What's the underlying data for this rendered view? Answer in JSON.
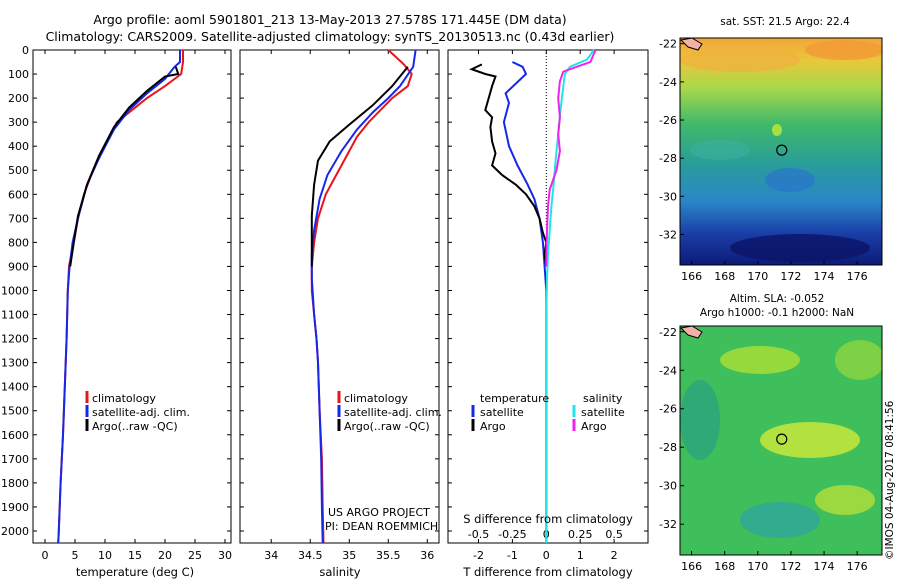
{
  "header": {
    "line1": "Argo profile: aoml 5901801_213 13-May-2013 27.578S 171.445E (DM data)",
    "line2": "Climatology: CARS2009. Satellite-adjusted climatology: synTS_20130513.nc (0.43d earlier)"
  },
  "colors": {
    "climatology": "#e8141a",
    "satellite": "#1528e8",
    "argo": "#000000",
    "sal_satellite": "#22e4e8",
    "sal_argo": "#ee22ee"
  },
  "depth_axis": {
    "ylim": [
      0,
      2050
    ],
    "ticks": [
      0,
      100,
      200,
      300,
      400,
      500,
      600,
      700,
      800,
      900,
      1000,
      1100,
      1200,
      1300,
      1400,
      1500,
      1600,
      1700,
      1800,
      1900,
      2000
    ]
  },
  "chart_data": [
    {
      "id": "temperature",
      "type": "line",
      "xlabel": "temperature (deg C)",
      "xlim": [
        -2,
        31
      ],
      "xticks": [
        0,
        5,
        10,
        15,
        20,
        25,
        30
      ],
      "legend": [
        "climatology",
        "satellite-adj. clim.",
        "Argo(..raw -QC)"
      ],
      "series": [
        {
          "name": "climatology",
          "color": "#e8141a",
          "points": [
            [
              23,
              0
            ],
            [
              23,
              50
            ],
            [
              22.7,
              100
            ],
            [
              20,
              150
            ],
            [
              17,
              200
            ],
            [
              14.5,
              250
            ],
            [
              12,
              300
            ],
            [
              10,
              400
            ],
            [
              8,
              500
            ],
            [
              6.5,
              600
            ],
            [
              5.5,
              700
            ],
            [
              4.8,
              800
            ],
            [
              4,
              900
            ],
            [
              3.8,
              1000
            ],
            [
              3.6,
              1200
            ],
            [
              3.3,
              1400
            ],
            [
              3,
              1600
            ],
            [
              2.6,
              1800
            ],
            [
              2.3,
              2000
            ],
            [
              2.2,
              2050
            ]
          ]
        },
        {
          "name": "satellite-adj. clim.",
          "color": "#1528e8",
          "points": [
            [
              22.5,
              0
            ],
            [
              22.5,
              50
            ],
            [
              21.6,
              70
            ],
            [
              20,
              120
            ],
            [
              17,
              180
            ],
            [
              14,
              250
            ],
            [
              11.5,
              330
            ],
            [
              9,
              450
            ],
            [
              7,
              560
            ],
            [
              5.5,
              700
            ],
            [
              4.6,
              800
            ],
            [
              4.1,
              900
            ],
            [
              3.8,
              1000
            ],
            [
              3.6,
              1200
            ],
            [
              3.3,
              1400
            ],
            [
              3,
              1600
            ],
            [
              2.6,
              1800
            ],
            [
              2.3,
              2000
            ],
            [
              2.2,
              2050
            ]
          ]
        },
        {
          "name": "Argo(..raw -QC)",
          "color": "#000000",
          "points": [
            [
              21.8,
              70
            ],
            [
              22.2,
              100
            ],
            [
              20,
              110
            ],
            [
              17,
              170
            ],
            [
              14,
              240
            ],
            [
              11.5,
              320
            ],
            [
              9,
              440
            ],
            [
              7,
              560
            ],
            [
              5.5,
              690
            ],
            [
              4.8,
              800
            ],
            [
              4.2,
              900
            ]
          ]
        }
      ]
    },
    {
      "id": "salinity",
      "type": "line",
      "xlabel": "salinity",
      "xlim": [
        33.6,
        36.15
      ],
      "xticks": [
        34,
        34.5,
        35,
        35.5,
        36
      ],
      "xticklabels": [
        "34",
        "34.5",
        "35",
        "35.5",
        "36"
      ],
      "legend": [
        "climatology",
        "satellite-adj. clim.",
        "Argo(..raw -QC)"
      ],
      "series": [
        {
          "name": "climatology",
          "color": "#e8141a",
          "points": [
            [
              35.5,
              0
            ],
            [
              35.7,
              60
            ],
            [
              35.8,
              100
            ],
            [
              35.75,
              150
            ],
            [
              35.55,
              200
            ],
            [
              35.4,
              250
            ],
            [
              35.25,
              300
            ],
            [
              35.1,
              360
            ],
            [
              35,
              420
            ],
            [
              34.9,
              480
            ],
            [
              34.8,
              540
            ],
            [
              34.7,
              600
            ],
            [
              34.6,
              700
            ],
            [
              34.55,
              800
            ],
            [
              34.52,
              900
            ],
            [
              34.52,
              1000
            ],
            [
              34.55,
              1100
            ],
            [
              34.58,
              1200
            ],
            [
              34.6,
              1300
            ],
            [
              34.62,
              1500
            ],
            [
              34.65,
              1700
            ],
            [
              34.66,
              1900
            ],
            [
              34.67,
              2050
            ]
          ]
        },
        {
          "name": "satellite-adj. clim.",
          "color": "#1528e8",
          "points": [
            [
              35.85,
              0
            ],
            [
              35.82,
              70
            ],
            [
              35.65,
              150
            ],
            [
              35.5,
              200
            ],
            [
              35.3,
              260
            ],
            [
              35.1,
              330
            ],
            [
              34.9,
              420
            ],
            [
              34.72,
              520
            ],
            [
              34.62,
              620
            ],
            [
              34.55,
              750
            ],
            [
              34.52,
              850
            ],
            [
              34.52,
              950
            ],
            [
              34.55,
              1100
            ],
            [
              34.58,
              1200
            ],
            [
              34.6,
              1300
            ],
            [
              34.62,
              1500
            ],
            [
              34.64,
              1700
            ],
            [
              34.65,
              1900
            ],
            [
              34.66,
              2050
            ]
          ]
        },
        {
          "name": "Argo(..raw -QC)",
          "color": "#000000",
          "points": [
            [
              35.75,
              70
            ],
            [
              35.7,
              90
            ],
            [
              35.55,
              150
            ],
            [
              35.3,
              230
            ],
            [
              35,
              310
            ],
            [
              34.75,
              380
            ],
            [
              34.6,
              460
            ],
            [
              34.55,
              560
            ],
            [
              34.52,
              690
            ],
            [
              34.52,
              800
            ],
            [
              34.52,
              900
            ]
          ]
        }
      ]
    },
    {
      "id": "differences",
      "type": "line",
      "xlabel": "T difference from climatology",
      "xlabel_top": "S difference from climatology",
      "xlim": [
        -2.9,
        3.0
      ],
      "xticks": [
        -2,
        -1,
        0,
        1,
        2
      ],
      "sticks": [
        -0.5,
        -0.25,
        0,
        0.25,
        0.5
      ],
      "sticklabels": [
        "-0.5",
        "-0.25",
        "0",
        "0.25",
        "0.5"
      ],
      "legend_temperature_title": "temperature",
      "legend_salinity_title": "salinity",
      "legend_items": [
        "satellite",
        "Argo",
        "satellite",
        "Argo"
      ],
      "series": [
        {
          "name": "satellite",
          "group": "temperature",
          "color": "#1528e8",
          "points": [
            [
              -1,
              50
            ],
            [
              -0.7,
              70
            ],
            [
              -0.6,
              100
            ],
            [
              -1.2,
              180
            ],
            [
              -1.1,
              220
            ],
            [
              -1.25,
              300
            ],
            [
              -1.1,
              400
            ],
            [
              -0.85,
              480
            ],
            [
              -0.55,
              560
            ],
            [
              -0.35,
              620
            ],
            [
              -0.2,
              700
            ],
            [
              -0.1,
              800
            ],
            [
              -0.05,
              900
            ],
            [
              0,
              1000
            ],
            [
              0,
              1200
            ],
            [
              0,
              1400
            ],
            [
              0,
              1600
            ],
            [
              0,
              1800
            ],
            [
              0,
              2050
            ]
          ]
        },
        {
          "name": "Argo",
          "group": "temperature",
          "color": "#000000",
          "points": [
            [
              -1.9,
              60
            ],
            [
              -2.2,
              80
            ],
            [
              -1.8,
              100
            ],
            [
              -1.5,
              110
            ],
            [
              -1.6,
              150
            ],
            [
              -1.7,
              200
            ],
            [
              -1.8,
              250
            ],
            [
              -1.6,
              280
            ],
            [
              -1.65,
              320
            ],
            [
              -1.6,
              380
            ],
            [
              -1.5,
              430
            ],
            [
              -1.6,
              480
            ],
            [
              -1.3,
              520
            ],
            [
              -0.9,
              560
            ],
            [
              -0.6,
              600
            ],
            [
              -0.35,
              650
            ],
            [
              -0.2,
              700
            ],
            [
              -0.1,
              760
            ],
            [
              0,
              800
            ],
            [
              -0.05,
              850
            ],
            [
              0,
              900
            ]
          ]
        },
        {
          "name": "satellite",
          "group": "salinity",
          "color": "#22e4e8",
          "points": [
            [
              1.4,
              0
            ],
            [
              1.2,
              40
            ],
            [
              0.7,
              70
            ],
            [
              0.55,
              100
            ],
            [
              0.5,
              150
            ],
            [
              0.42,
              250
            ],
            [
              0.35,
              350
            ],
            [
              0.28,
              450
            ],
            [
              0.22,
              550
            ],
            [
              0.15,
              650
            ],
            [
              0.1,
              750
            ],
            [
              0.05,
              850
            ],
            [
              0.02,
              950
            ],
            [
              0,
              1100
            ],
            [
              0,
              2050
            ]
          ]
        },
        {
          "name": "Argo",
          "group": "salinity",
          "color": "#ee22ee",
          "points": [
            [
              1.45,
              0
            ],
            [
              1.3,
              50
            ],
            [
              0.5,
              90
            ],
            [
              0.4,
              130
            ],
            [
              0.35,
              200
            ],
            [
              0.4,
              280
            ],
            [
              0.35,
              350
            ],
            [
              0.4,
              420
            ],
            [
              0.3,
              500
            ],
            [
              0.1,
              580
            ],
            [
              0.05,
              650
            ],
            [
              0.02,
              750
            ],
            [
              0,
              850
            ],
            [
              0,
              900
            ]
          ]
        }
      ]
    }
  ],
  "annotations": {
    "project": "US ARGO PROJECT",
    "pi": "PI: DEAN ROEMMICH"
  },
  "maps": {
    "top": {
      "label": "sat. SST: 21.5  Argo: 22.4"
    },
    "bottom": {
      "label1": "Altim. SLA: -0.052",
      "label2": "Argo h1000: -0.1  h2000: NaN"
    },
    "xticks": [
      166,
      168,
      170,
      172,
      174,
      176
    ],
    "yticks": [
      -22,
      -24,
      -26,
      -28,
      -30,
      -32
    ],
    "lon": [
      165.3,
      177.5
    ],
    "lat": [
      -21.7,
      -33.6
    ],
    "float_lon": 171.445,
    "float_lat": -27.578
  },
  "footer": {
    "imos": "©IMOS 04-Aug-2017 08:41:56"
  }
}
